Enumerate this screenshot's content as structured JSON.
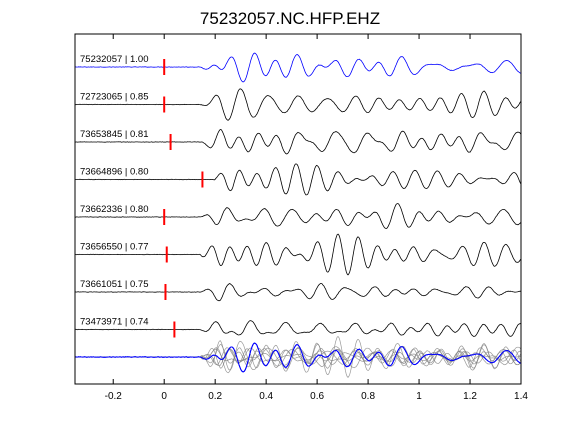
{
  "chart_data": {
    "type": "line",
    "title": "75232057.NC.HFP.EHZ",
    "xlabel": "",
    "ylabel": "",
    "xlim": [
      -0.35,
      1.4
    ],
    "xticks": [
      -0.2,
      0,
      0.2,
      0.4,
      0.6,
      0.8,
      1,
      1.2,
      1.4
    ],
    "xtick_labels": [
      "-0.2",
      "0",
      "0.2",
      "0.4",
      "0.6",
      "0.8",
      "1",
      "1.2",
      "1.4"
    ],
    "grid": false,
    "legend": "none",
    "colors": {
      "reference": "#0000ff",
      "trace": "#000000",
      "stack": "#808080",
      "pick": "#ff0000"
    },
    "traces": [
      {
        "event_id": "75232057",
        "correlation": "1.00",
        "label": "75232057 | 1.00",
        "pick_time": 0.0,
        "color": "#0000ff"
      },
      {
        "event_id": "72723065",
        "correlation": "0.85",
        "label": "72723065 | 0.85",
        "pick_time": 0.0,
        "color": "#000000"
      },
      {
        "event_id": "73653845",
        "correlation": "0.81",
        "label": "73653845 | 0.81",
        "pick_time": 0.025,
        "color": "#000000"
      },
      {
        "event_id": "73664896",
        "correlation": "0.80",
        "label": "73664896 | 0.80",
        "pick_time": 0.15,
        "color": "#000000"
      },
      {
        "event_id": "73662336",
        "correlation": "0.80",
        "label": "73662336 | 0.80",
        "pick_time": 0.0,
        "color": "#000000"
      },
      {
        "event_id": "73656550",
        "correlation": "0.77",
        "label": "73656550 | 0.77",
        "pick_time": 0.01,
        "color": "#000000"
      },
      {
        "event_id": "73661051",
        "correlation": "0.75",
        "label": "73661051 | 0.75",
        "pick_time": 0.005,
        "color": "#000000"
      },
      {
        "event_id": "73473971",
        "correlation": "0.74",
        "label": "73473971 | 0.74",
        "pick_time": 0.04,
        "color": "#000000"
      }
    ],
    "overlay": {
      "description_visible": false
    }
  }
}
